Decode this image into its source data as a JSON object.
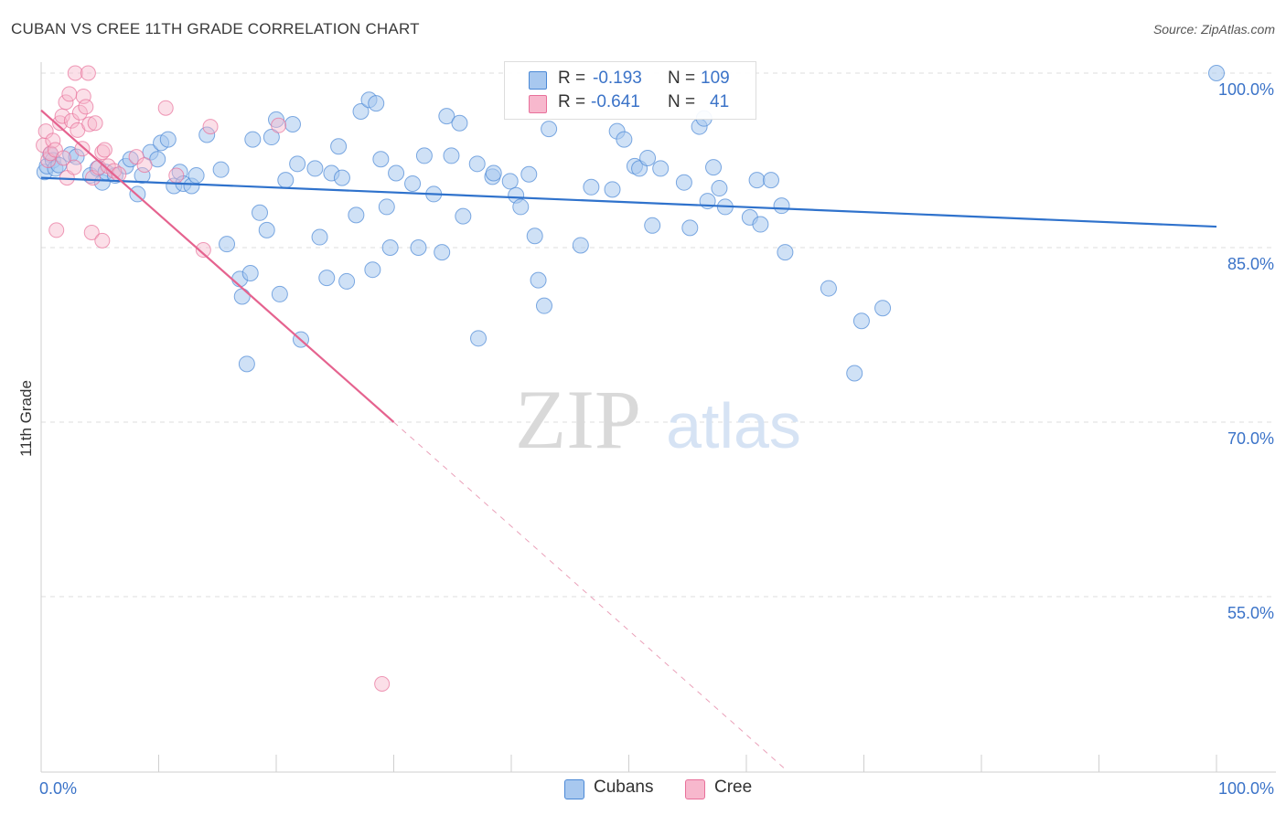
{
  "title": "CUBAN VS CREE 11TH GRADE CORRELATION CHART",
  "source": "Source: ZipAtlas.com",
  "watermark": {
    "zip": "ZIP",
    "atlas": "atlas"
  },
  "colors": {
    "cubans": "#4a88d6",
    "cubans_fill": "#a8c8ef",
    "cree": "#e8709a",
    "cree_fill": "#f7b8cd",
    "axis_text": "#3b73c8"
  },
  "legend_top": {
    "rows": [
      {
        "r_label": "R = ",
        "r_value": "-0.193",
        "n_label": "N = ",
        "n_value": "109"
      },
      {
        "r_label": "R = ",
        "r_value": "-0.641",
        "n_label": "N = ",
        "n_value": "41"
      }
    ]
  },
  "legend_bottom": [
    "Cubans",
    "Cree"
  ],
  "chart_data": {
    "type": "scatter",
    "title": "CUBAN VS CREE 11TH GRADE CORRELATION CHART",
    "xlabel": "",
    "ylabel": "11th Grade",
    "xlim": [
      0,
      100
    ],
    "ylim": [
      40,
      103
    ],
    "x_tick_labels": [
      "0.0%",
      "100.0%"
    ],
    "y_ticks": [
      55,
      70,
      85,
      100
    ],
    "y_tick_labels": [
      "55.0%",
      "70.0%",
      "85.0%",
      "100.0%"
    ],
    "grid": "horizontal dashed",
    "legend_position": "bottom",
    "series": [
      {
        "name": "Cubans",
        "r": -0.193,
        "n": 109,
        "trend": {
          "x": [
            0,
            100
          ],
          "y": [
            91.0,
            86.8
          ]
        },
        "points": [
          [
            0.3,
            91.5
          ],
          [
            0.5,
            92.0
          ],
          [
            0.8,
            93.0
          ],
          [
            1.0,
            92.5
          ],
          [
            1.2,
            91.8
          ],
          [
            1.5,
            92.1
          ],
          [
            2.5,
            93.0
          ],
          [
            3.0,
            92.8
          ],
          [
            4.2,
            91.2
          ],
          [
            4.8,
            91.8
          ],
          [
            5.2,
            90.6
          ],
          [
            5.5,
            91.5
          ],
          [
            6.3,
            91.2
          ],
          [
            7.2,
            92.0
          ],
          [
            7.6,
            92.6
          ],
          [
            8.2,
            89.6
          ],
          [
            8.6,
            91.2
          ],
          [
            9.3,
            93.2
          ],
          [
            9.9,
            92.6
          ],
          [
            10.2,
            94.0
          ],
          [
            10.8,
            94.3
          ],
          [
            11.3,
            90.3
          ],
          [
            11.8,
            91.5
          ],
          [
            12.1,
            90.5
          ],
          [
            12.8,
            90.3
          ],
          [
            13.2,
            91.2
          ],
          [
            14.1,
            94.7
          ],
          [
            15.3,
            91.7
          ],
          [
            15.8,
            85.3
          ],
          [
            16.9,
            82.3
          ],
          [
            17.1,
            80.8
          ],
          [
            17.5,
            75.0
          ],
          [
            17.8,
            82.8
          ],
          [
            18.0,
            94.3
          ],
          [
            18.6,
            88.0
          ],
          [
            19.2,
            86.5
          ],
          [
            19.6,
            94.5
          ],
          [
            20.0,
            96.0
          ],
          [
            20.3,
            81.0
          ],
          [
            20.8,
            90.8
          ],
          [
            21.4,
            95.6
          ],
          [
            21.8,
            92.2
          ],
          [
            22.1,
            77.1
          ],
          [
            23.3,
            91.8
          ],
          [
            23.7,
            85.9
          ],
          [
            24.3,
            82.4
          ],
          [
            24.7,
            91.4
          ],
          [
            25.3,
            93.7
          ],
          [
            25.6,
            91.0
          ],
          [
            26.0,
            82.1
          ],
          [
            26.8,
            87.8
          ],
          [
            27.2,
            96.7
          ],
          [
            27.9,
            97.7
          ],
          [
            28.2,
            83.1
          ],
          [
            28.5,
            97.4
          ],
          [
            28.9,
            92.6
          ],
          [
            29.4,
            88.5
          ],
          [
            29.7,
            85.0
          ],
          [
            30.2,
            91.4
          ],
          [
            31.6,
            90.5
          ],
          [
            32.1,
            85.0
          ],
          [
            32.6,
            92.9
          ],
          [
            33.4,
            89.6
          ],
          [
            34.1,
            84.6
          ],
          [
            34.5,
            96.3
          ],
          [
            34.9,
            92.9
          ],
          [
            35.6,
            95.7
          ],
          [
            35.9,
            87.7
          ],
          [
            37.1,
            92.2
          ],
          [
            37.2,
            77.2
          ],
          [
            38.4,
            91.1
          ],
          [
            38.5,
            91.4
          ],
          [
            39.9,
            90.7
          ],
          [
            40.4,
            89.5
          ],
          [
            40.8,
            88.5
          ],
          [
            41.5,
            91.3
          ],
          [
            42.0,
            86.0
          ],
          [
            42.3,
            82.2
          ],
          [
            42.8,
            80.0
          ],
          [
            43.2,
            95.2
          ],
          [
            45.9,
            85.2
          ],
          [
            46.8,
            90.2
          ],
          [
            48.6,
            90.0
          ],
          [
            49.0,
            95.0
          ],
          [
            49.6,
            94.3
          ],
          [
            50.5,
            92.0
          ],
          [
            50.9,
            91.8
          ],
          [
            51.6,
            92.7
          ],
          [
            52.0,
            86.9
          ],
          [
            52.7,
            91.8
          ],
          [
            54.7,
            90.6
          ],
          [
            55.2,
            86.7
          ],
          [
            56.0,
            95.4
          ],
          [
            56.4,
            96.1
          ],
          [
            56.7,
            89.0
          ],
          [
            57.2,
            91.9
          ],
          [
            57.7,
            90.1
          ],
          [
            58.2,
            88.5
          ],
          [
            60.3,
            87.6
          ],
          [
            60.9,
            90.8
          ],
          [
            61.2,
            87.0
          ],
          [
            62.1,
            90.8
          ],
          [
            63.0,
            88.6
          ],
          [
            63.3,
            84.6
          ],
          [
            67.0,
            81.5
          ],
          [
            69.2,
            74.2
          ],
          [
            69.8,
            78.7
          ],
          [
            71.6,
            79.8
          ],
          [
            100.0,
            100.0
          ]
        ]
      },
      {
        "name": "Cree",
        "r": -0.641,
        "n": 41,
        "trend": {
          "x": [
            0,
            30
          ],
          "y": [
            96.8,
            70.0
          ]
        },
        "trend_dashed": {
          "x": [
            30,
            63.5
          ],
          "y": [
            70.0,
            40.0
          ]
        },
        "points": [
          [
            0.2,
            93.8
          ],
          [
            0.4,
            95.0
          ],
          [
            0.6,
            92.5
          ],
          [
            0.8,
            93.1
          ],
          [
            1.0,
            94.2
          ],
          [
            1.2,
            93.4
          ],
          [
            1.3,
            86.5
          ],
          [
            1.6,
            95.7
          ],
          [
            1.8,
            96.3
          ],
          [
            1.9,
            92.7
          ],
          [
            2.1,
            97.5
          ],
          [
            2.2,
            91.0
          ],
          [
            2.4,
            98.2
          ],
          [
            2.6,
            95.9
          ],
          [
            2.8,
            91.9
          ],
          [
            2.9,
            100.0
          ],
          [
            3.1,
            95.1
          ],
          [
            3.3,
            96.6
          ],
          [
            3.5,
            93.5
          ],
          [
            3.6,
            98.0
          ],
          [
            3.8,
            97.1
          ],
          [
            4.0,
            100.0
          ],
          [
            4.1,
            95.6
          ],
          [
            4.3,
            86.3
          ],
          [
            4.4,
            91.0
          ],
          [
            4.6,
            95.7
          ],
          [
            4.9,
            91.9
          ],
          [
            5.2,
            93.2
          ],
          [
            5.4,
            93.4
          ],
          [
            5.2,
            85.6
          ],
          [
            5.7,
            92.0
          ],
          [
            6.2,
            91.6
          ],
          [
            6.6,
            91.3
          ],
          [
            8.1,
            92.8
          ],
          [
            8.8,
            92.1
          ],
          [
            10.6,
            97.0
          ],
          [
            11.5,
            91.2
          ],
          [
            13.8,
            84.8
          ],
          [
            14.4,
            95.4
          ],
          [
            20.2,
            95.5
          ],
          [
            29.0,
            47.5
          ]
        ]
      }
    ]
  }
}
